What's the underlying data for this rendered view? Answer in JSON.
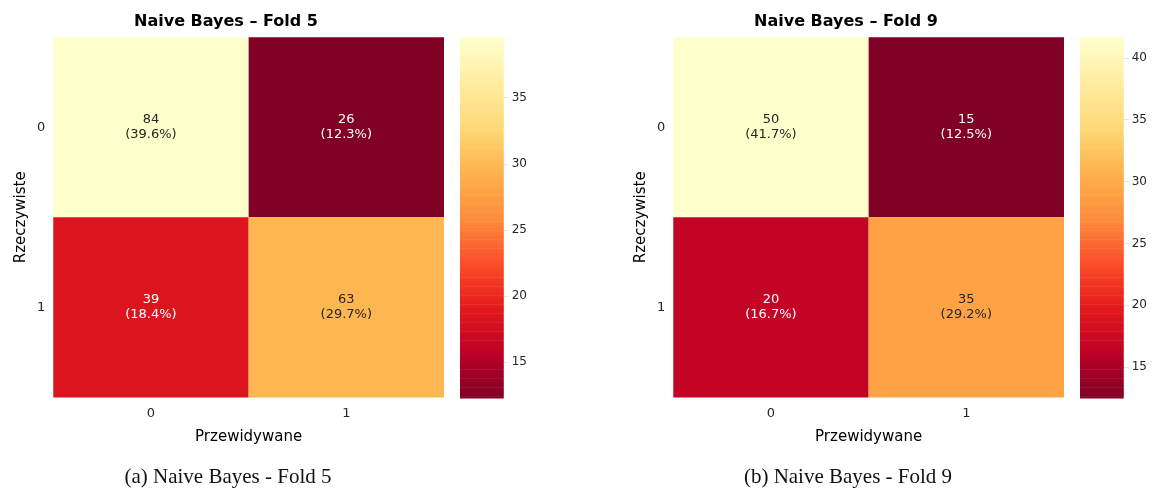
{
  "chart_data": [
    {
      "type": "heatmap",
      "title": "Naive Bayes – Fold 5",
      "xlabel": "Przewidywane",
      "ylabel": "Rzeczywiste",
      "categories": [
        "0",
        "1"
      ],
      "y_categories": [
        "0",
        "1"
      ],
      "cells": [
        [
          39.6,
          12.3
        ],
        [
          18.4,
          29.7
        ]
      ],
      "cell_labels": [
        [
          "84\n(39.6%)",
          "26\n(12.3%)"
        ],
        [
          "39\n(18.4%)",
          "63\n(29.7%)"
        ]
      ],
      "clim": [
        12.3,
        39.6
      ],
      "cticks": [
        15,
        20,
        25,
        30,
        35
      ],
      "annotations": [
        "(a) Naive Bayes - Fold 5"
      ]
    },
    {
      "type": "heatmap",
      "title": "Naive Bayes – Fold 9",
      "xlabel": "Przewidywane",
      "ylabel": "Rzeczywiste",
      "categories": [
        "0",
        "1"
      ],
      "y_categories": [
        "0",
        "1"
      ],
      "cells": [
        [
          41.7,
          12.5
        ],
        [
          16.7,
          29.2
        ]
      ],
      "cell_labels": [
        [
          "50\n(41.7%)",
          "15\n(12.5%)"
        ],
        [
          "20\n(16.7%)",
          "35\n(29.2%)"
        ]
      ],
      "clim": [
        12.5,
        41.7
      ],
      "cticks": [
        15,
        20,
        25,
        30,
        35,
        40
      ],
      "annotations": [
        "(b) Naive Bayes - Fold 9"
      ]
    }
  ]
}
